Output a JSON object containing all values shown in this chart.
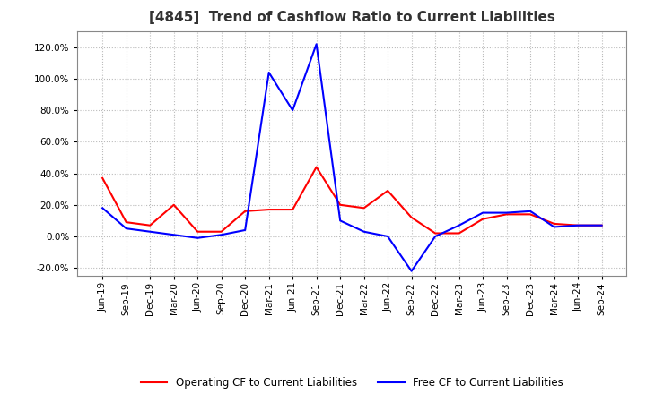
{
  "title": "[4845]  Trend of Cashflow Ratio to Current Liabilities",
  "title_fontsize": 11,
  "background_color": "#ffffff",
  "plot_bg_color": "#ffffff",
  "grid_color": "#bbbbbb",
  "x_labels": [
    "Jun-19",
    "Sep-19",
    "Dec-19",
    "Mar-20",
    "Jun-20",
    "Sep-20",
    "Dec-20",
    "Mar-21",
    "Jun-21",
    "Sep-21",
    "Dec-21",
    "Mar-22",
    "Jun-22",
    "Sep-22",
    "Dec-22",
    "Mar-23",
    "Jun-23",
    "Sep-23",
    "Dec-23",
    "Mar-24",
    "Jun-24",
    "Sep-24"
  ],
  "operating_cf": [
    0.37,
    0.09,
    0.07,
    0.2,
    0.03,
    0.03,
    0.16,
    0.17,
    0.17,
    0.44,
    0.2,
    0.18,
    0.29,
    0.12,
    0.02,
    0.02,
    0.11,
    0.14,
    0.14,
    0.08,
    0.07,
    0.07
  ],
  "free_cf": [
    0.18,
    0.05,
    0.03,
    0.01,
    -0.01,
    0.01,
    0.04,
    1.04,
    0.8,
    1.22,
    0.1,
    0.03,
    0.0,
    -0.22,
    0.0,
    0.07,
    0.15,
    0.15,
    0.16,
    0.06,
    0.07,
    0.07
  ],
  "ylim": [
    -0.25,
    1.3
  ],
  "yticks": [
    -0.2,
    0.0,
    0.2,
    0.4,
    0.6,
    0.8,
    1.0,
    1.2
  ],
  "operating_color": "#ff0000",
  "free_color": "#0000ff",
  "legend_labels": [
    "Operating CF to Current Liabilities",
    "Free CF to Current Liabilities"
  ]
}
